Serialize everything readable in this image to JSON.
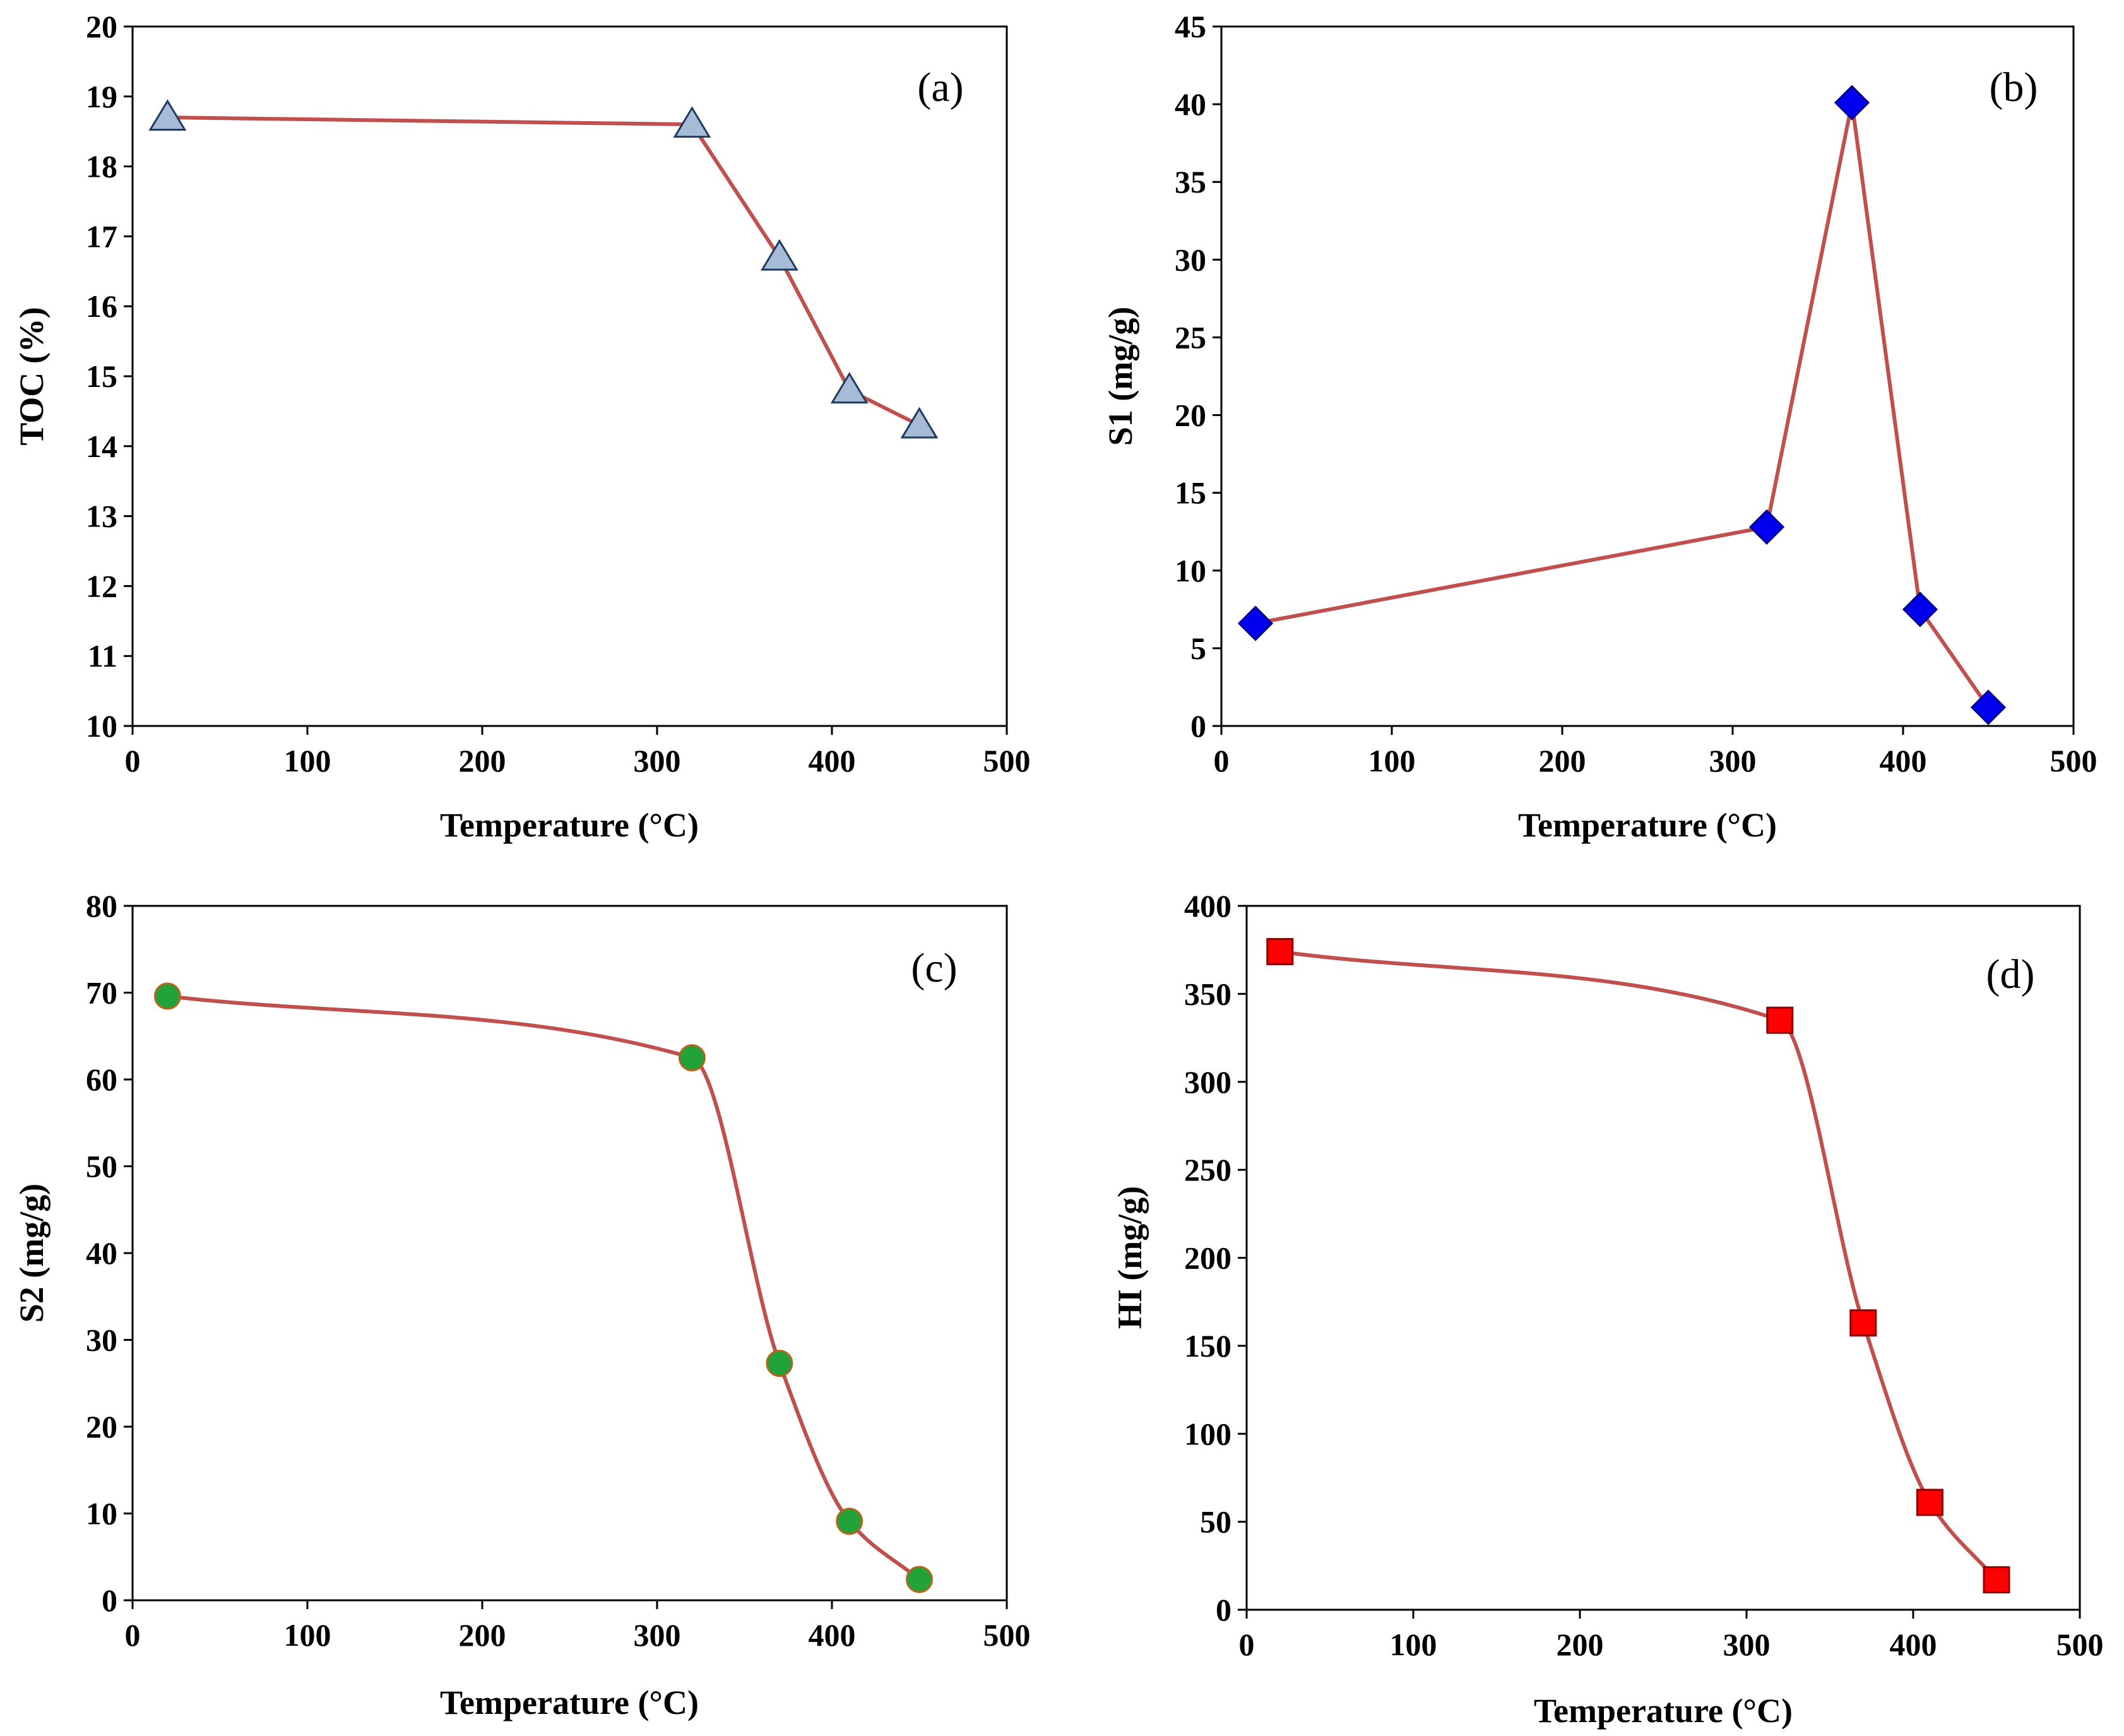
{
  "colors": {
    "line": "#C0504D",
    "triangle_fill": "#A6BCD6",
    "triangle_stroke": "#1F3A5F",
    "diamond_fill": "#0000EE",
    "diamond_stroke": "#00008B",
    "circle_fill": "#22A33A",
    "circle_stroke": "#B5651D",
    "square_fill": "#FF0000",
    "square_stroke": "#8B0000"
  },
  "chart_data": [
    {
      "id": "a",
      "type": "line",
      "panel_label": "(a)",
      "xlabel": "Temperature (°C)",
      "ylabel": "TOC (%)",
      "xlim": [
        0,
        500
      ],
      "ylim": [
        10,
        20
      ],
      "xticks": [
        "0",
        "100",
        "200",
        "300",
        "400",
        "500"
      ],
      "yticks": [
        "10",
        "11",
        "12",
        "13",
        "14",
        "15",
        "16",
        "17",
        "18",
        "19",
        "20"
      ],
      "grid": false,
      "smooth": false,
      "marker": "triangle",
      "series": [
        {
          "x": [
            20,
            320,
            370,
            410,
            450
          ],
          "y": [
            18.7,
            18.6,
            16.7,
            14.8,
            14.3
          ]
        }
      ]
    },
    {
      "id": "b",
      "type": "line",
      "panel_label": "(b)",
      "xlabel": "Temperature (°C)",
      "ylabel": "S1 (mg/g)",
      "xlim": [
        0,
        500
      ],
      "ylim": [
        0,
        45
      ],
      "xticks": [
        "0",
        "100",
        "200",
        "300",
        "400",
        "500"
      ],
      "yticks": [
        "0",
        "5",
        "10",
        "15",
        "20",
        "25",
        "30",
        "35",
        "40",
        "45"
      ],
      "grid": false,
      "smooth": false,
      "marker": "diamond",
      "series": [
        {
          "x": [
            20,
            320,
            370,
            410,
            450
          ],
          "y": [
            6.6,
            12.8,
            40.1,
            7.5,
            1.2
          ]
        }
      ]
    },
    {
      "id": "c",
      "type": "line",
      "panel_label": "(c)",
      "xlabel": "Temperature (°C)",
      "ylabel": "S2 (mg/g)",
      "xlim": [
        0,
        500
      ],
      "ylim": [
        0,
        80
      ],
      "xticks": [
        "0",
        "100",
        "200",
        "300",
        "400",
        "500"
      ],
      "yticks": [
        "0",
        "10",
        "20",
        "30",
        "40",
        "50",
        "60",
        "70",
        "80"
      ],
      "grid": false,
      "smooth": true,
      "marker": "circle",
      "series": [
        {
          "x": [
            20,
            320,
            370,
            410,
            450
          ],
          "y": [
            69.6,
            62.5,
            27.3,
            9.1,
            2.4
          ]
        }
      ]
    },
    {
      "id": "d",
      "type": "line",
      "panel_label": "(d)",
      "xlabel": "Temperature (°C)",
      "ylabel": "HI (mg/g)",
      "xlim": [
        0,
        500
      ],
      "ylim": [
        0,
        400
      ],
      "xticks": [
        "0",
        "100",
        "200",
        "300",
        "400",
        "500"
      ],
      "yticks": [
        "0",
        "50",
        "100",
        "150",
        "200",
        "250",
        "300",
        "350",
        "400"
      ],
      "grid": false,
      "smooth": true,
      "marker": "square",
      "series": [
        {
          "x": [
            20,
            320,
            370,
            410,
            450
          ],
          "y": [
            374,
            335,
            163,
            61,
            17
          ]
        }
      ]
    }
  ]
}
